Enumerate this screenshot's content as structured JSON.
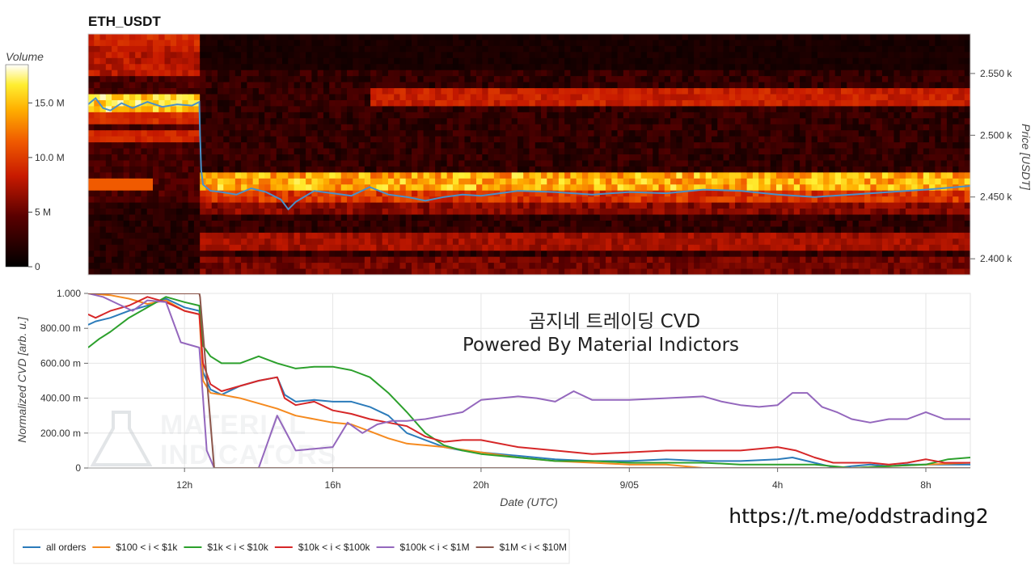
{
  "header": {
    "title": "ETH_USDT"
  },
  "watermark": {
    "line1": "곰지네 트레이딩 CVD",
    "line2": "Powered By Material Indictors",
    "logo_line1": "MATERIAL",
    "logo_line2": "INDICATORS",
    "url": "https://t.me/oddstrading2"
  },
  "colors": {
    "all_orders": "#2b7bba",
    "s100_1k": "#f58a1f",
    "s1k_10k": "#2ca02c",
    "s10k_100k": "#d62728",
    "s100k_1m": "#9467bd",
    "s1m_10m": "#8c564b",
    "price_line": "#4a90c8"
  },
  "chart_data": [
    {
      "type": "heatmap",
      "title": "ETH_USDT",
      "colorbar": {
        "label": "Volume",
        "ticks": [
          "0",
          "5 M",
          "10.0 M",
          "15.0 M"
        ],
        "tick_values": [
          0,
          5,
          10,
          15
        ],
        "range": [
          0,
          18.5
        ],
        "unit": "M"
      },
      "y_axis": {
        "label": "Price [USDT]",
        "ticks": [
          "2.400 k",
          "2.450 k",
          "2.500 k",
          "2.550 k"
        ],
        "tick_values": [
          2400,
          2450,
          2500,
          2550
        ],
        "range": [
          2387,
          2582
        ]
      },
      "x_range_hours": [
        9.4,
        33.2
      ],
      "price_line": {
        "x": [
          9.4,
          9.6,
          9.8,
          10.0,
          10.3,
          10.6,
          11.0,
          11.4,
          11.8,
          12.2,
          12.4,
          12.42,
          12.45,
          12.5,
          12.7,
          13.0,
          13.4,
          13.8,
          14.2,
          14.6,
          14.8,
          15.0,
          15.5,
          16.0,
          16.5,
          17.0,
          17.5,
          18.0,
          18.5,
          19.0,
          19.5,
          20.0,
          21.0,
          22.0,
          23.0,
          24.0,
          25.0,
          26.0,
          27.0,
          28.0,
          29.0,
          30.0,
          31.0,
          32.0,
          33.2
        ],
        "y": [
          2525,
          2530,
          2522,
          2520,
          2526,
          2522,
          2527,
          2523,
          2525,
          2524,
          2527,
          2500,
          2472,
          2460,
          2455,
          2454,
          2452,
          2457,
          2454,
          2448,
          2440,
          2446,
          2455,
          2453,
          2451,
          2458,
          2452,
          2450,
          2447,
          2450,
          2452,
          2451,
          2455,
          2454,
          2452,
          2454,
          2453,
          2456,
          2455,
          2452,
          2450,
          2452,
          2454,
          2456,
          2459
        ]
      }
    },
    {
      "type": "line",
      "y_axis": {
        "label": "Normalized CVD [arb. u.]",
        "ticks": [
          "0",
          "200.00 m",
          "400.00 m",
          "600.00 m",
          "800.00 m",
          "1.000"
        ],
        "tick_values": [
          0,
          0.2,
          0.4,
          0.6,
          0.8,
          1.0
        ],
        "range": [
          0,
          1.0
        ]
      },
      "x_axis": {
        "label": "Date (UTC)",
        "ticks": [
          "12h",
          "16h",
          "20h",
          "9/05",
          "4h",
          "8h"
        ],
        "tick_values": [
          12,
          16,
          20,
          24,
          28,
          32
        ],
        "range": [
          9.4,
          33.2
        ]
      },
      "legend": {
        "placement": "bottom-left",
        "entries": [
          "all orders",
          "$100 < i < $1k",
          "$1k < i < $10k",
          "$10k < i < $100k",
          "$100k < i < $1M",
          "$1M < i < $10M"
        ]
      },
      "series": [
        {
          "name": "all orders",
          "x": [
            9.4,
            9.6,
            10.0,
            10.5,
            11.0,
            11.5,
            12.0,
            12.4,
            12.5,
            12.7,
            13.0,
            13.5,
            14.0,
            14.5,
            14.7,
            15.0,
            15.5,
            16.0,
            16.5,
            17.0,
            17.5,
            18.0,
            18.5,
            19.0,
            19.5,
            20.0,
            21.0,
            22.0,
            23.0,
            24.0,
            25.0,
            26.0,
            27.0,
            28.0,
            28.4,
            28.8,
            29.2,
            29.6,
            30.0,
            30.5,
            31.0,
            31.5,
            32.0,
            32.5,
            33.2
          ],
          "y": [
            0.82,
            0.84,
            0.86,
            0.9,
            0.93,
            0.97,
            0.92,
            0.9,
            0.55,
            0.45,
            0.42,
            0.47,
            0.5,
            0.52,
            0.42,
            0.38,
            0.39,
            0.38,
            0.38,
            0.35,
            0.3,
            0.2,
            0.16,
            0.12,
            0.1,
            0.09,
            0.07,
            0.05,
            0.04,
            0.04,
            0.05,
            0.04,
            0.04,
            0.05,
            0.06,
            0.04,
            0.02,
            0.0,
            0.01,
            0.02,
            0.01,
            0.02,
            0.02,
            0.02,
            0.02
          ]
        },
        {
          "name": "$100 < i < $1k",
          "x": [
            9.4,
            10.0,
            10.5,
            11.0,
            11.5,
            12.0,
            12.4,
            12.5,
            12.7,
            13.0,
            13.5,
            14.0,
            14.5,
            15.0,
            15.5,
            16.0,
            16.5,
            17.0,
            17.5,
            18.0,
            18.5,
            19.0,
            20.0,
            21.0,
            22.0,
            23.0,
            24.0,
            25.0,
            26.0,
            27.0,
            28.0,
            29.0,
            30.0,
            31.0,
            32.0,
            33.2
          ],
          "y": [
            1.0,
            0.99,
            0.97,
            0.94,
            0.96,
            0.9,
            0.88,
            0.5,
            0.43,
            0.42,
            0.4,
            0.37,
            0.34,
            0.3,
            0.28,
            0.26,
            0.25,
            0.21,
            0.17,
            0.14,
            0.13,
            0.12,
            0.09,
            0.06,
            0.04,
            0.03,
            0.02,
            0.02,
            0.0,
            0.0,
            0.0,
            0.0,
            0.0,
            0.01,
            0.02,
            0.03
          ]
        },
        {
          "name": "$1k < i < $10k",
          "x": [
            9.4,
            9.7,
            10.0,
            10.5,
            11.0,
            11.5,
            12.0,
            12.4,
            12.5,
            12.7,
            13.0,
            13.5,
            14.0,
            14.5,
            15.0,
            15.5,
            16.0,
            16.5,
            17.0,
            17.5,
            18.0,
            18.5,
            19.0,
            19.5,
            20.0,
            21.0,
            22.0,
            23.0,
            24.0,
            25.0,
            26.0,
            27.0,
            28.0,
            29.0,
            30.0,
            31.0,
            32.0,
            32.6,
            33.2
          ],
          "y": [
            0.69,
            0.74,
            0.78,
            0.86,
            0.92,
            0.98,
            0.95,
            0.93,
            0.7,
            0.64,
            0.6,
            0.6,
            0.64,
            0.6,
            0.57,
            0.58,
            0.58,
            0.56,
            0.52,
            0.43,
            0.32,
            0.2,
            0.13,
            0.1,
            0.08,
            0.06,
            0.04,
            0.04,
            0.03,
            0.03,
            0.03,
            0.02,
            0.02,
            0.02,
            0.0,
            0.01,
            0.02,
            0.05,
            0.06
          ]
        },
        {
          "name": "$10k < i < $100k",
          "x": [
            9.4,
            9.6,
            10.0,
            10.5,
            11.0,
            11.5,
            12.0,
            12.4,
            12.5,
            12.7,
            13.0,
            13.5,
            14.0,
            14.5,
            14.7,
            15.0,
            15.5,
            16.0,
            16.5,
            17.0,
            17.5,
            18.0,
            18.5,
            19.0,
            19.5,
            20.0,
            21.0,
            22.0,
            23.0,
            24.0,
            25.0,
            26.0,
            27.0,
            28.0,
            28.5,
            29.0,
            29.5,
            30.0,
            30.5,
            31.0,
            31.5,
            32.0,
            32.5,
            33.2
          ],
          "y": [
            0.88,
            0.86,
            0.9,
            0.93,
            0.98,
            0.95,
            0.9,
            0.88,
            0.6,
            0.48,
            0.44,
            0.47,
            0.5,
            0.52,
            0.4,
            0.36,
            0.38,
            0.33,
            0.31,
            0.28,
            0.26,
            0.24,
            0.18,
            0.15,
            0.16,
            0.16,
            0.12,
            0.1,
            0.08,
            0.09,
            0.1,
            0.1,
            0.1,
            0.12,
            0.1,
            0.06,
            0.03,
            0.03,
            0.03,
            0.02,
            0.03,
            0.05,
            0.03,
            0.03
          ]
        },
        {
          "name": "$100k < i < $1M",
          "x": [
            9.4,
            9.8,
            10.2,
            10.6,
            11.0,
            11.5,
            11.9,
            12.4,
            12.5,
            12.6,
            12.8,
            13.0,
            13.5,
            14.0,
            14.5,
            14.7,
            15.0,
            15.5,
            16.0,
            16.4,
            16.8,
            17.2,
            17.6,
            18.0,
            18.5,
            19.0,
            19.5,
            20.0,
            20.5,
            21.0,
            21.5,
            22.0,
            22.5,
            23.0,
            24.0,
            25.0,
            26.0,
            26.5,
            27.0,
            27.5,
            28.0,
            28.4,
            28.8,
            29.2,
            29.6,
            30.0,
            30.5,
            31.0,
            31.5,
            32.0,
            32.5,
            33.2
          ],
          "y": [
            1.0,
            0.98,
            0.94,
            0.9,
            0.96,
            0.95,
            0.72,
            0.69,
            0.4,
            0.1,
            0.0,
            0.0,
            0.0,
            0.0,
            0.3,
            0.22,
            0.1,
            0.11,
            0.12,
            0.26,
            0.2,
            0.25,
            0.27,
            0.27,
            0.28,
            0.3,
            0.32,
            0.39,
            0.4,
            0.41,
            0.4,
            0.38,
            0.44,
            0.39,
            0.39,
            0.4,
            0.41,
            0.38,
            0.36,
            0.35,
            0.36,
            0.43,
            0.43,
            0.35,
            0.32,
            0.28,
            0.26,
            0.28,
            0.28,
            0.32,
            0.28,
            0.28
          ]
        },
        {
          "name": "$1M < i < $10M",
          "x": [
            9.4,
            12.4,
            12.42,
            12.8,
            13.0,
            33.2
          ],
          "y": [
            1.0,
            1.0,
            0.98,
            0.0,
            0.0,
            0.0
          ]
        }
      ]
    }
  ]
}
